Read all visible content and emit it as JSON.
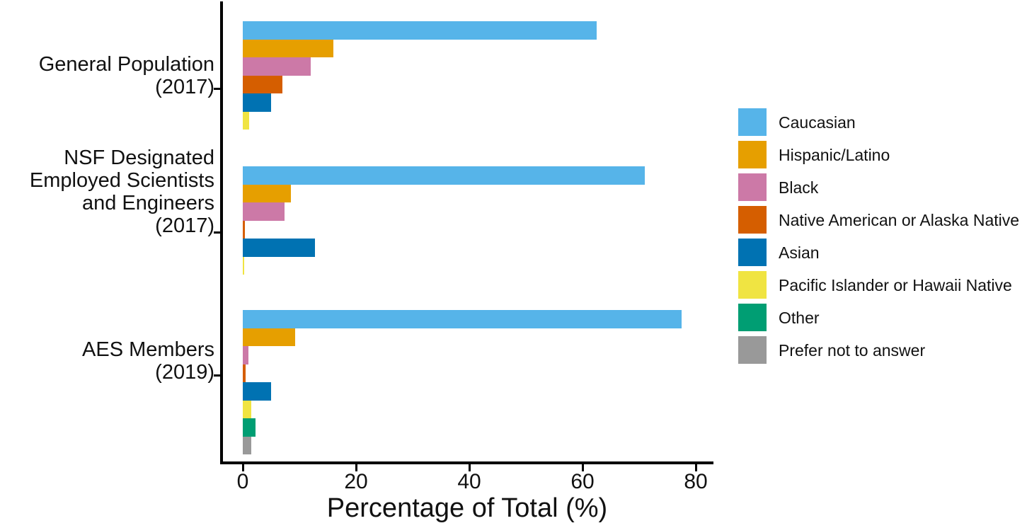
{
  "chart_data": {
    "type": "bar",
    "orientation": "horizontal",
    "title": "",
    "xlabel": "Percentage of Total (%)",
    "ylabel": "",
    "xlim": [
      0,
      80
    ],
    "x_ticks": [
      0,
      20,
      40,
      60,
      80
    ],
    "grid": false,
    "legend_position": "right",
    "categories": [
      "Caucasian",
      "Hispanic/Latino",
      "Black",
      "Native American or Alaska Native",
      "Asian",
      "Pacific Islander or Hawaii Native",
      "Other",
      "Prefer not to answer"
    ],
    "colors": [
      "#56B4E9",
      "#E69F00",
      "#CC79A7",
      "#D55E00",
      "#0072B2",
      "#F0E442",
      "#009E73",
      "#999999"
    ],
    "groups": [
      {
        "label": "General Population (2017)",
        "label_lines": [
          "General Population",
          "(2017)"
        ],
        "values": [
          62.5,
          16,
          12,
          7,
          5,
          1.1,
          0,
          0
        ]
      },
      {
        "label": "NSF Designated Employed Scientists and Engineers (2017)",
        "label_lines": [
          "NSF Designated",
          "Employed Scientists",
          "and Engineers",
          "(2017)"
        ],
        "values": [
          71,
          8.5,
          7.4,
          0.4,
          12.8,
          0.3,
          0,
          0
        ]
      },
      {
        "label": "AES Members (2019)",
        "label_lines": [
          "AES Members",
          "(2019)"
        ],
        "values": [
          77.5,
          9.3,
          1,
          0.5,
          5,
          1.5,
          2.2,
          1.5
        ]
      }
    ]
  }
}
